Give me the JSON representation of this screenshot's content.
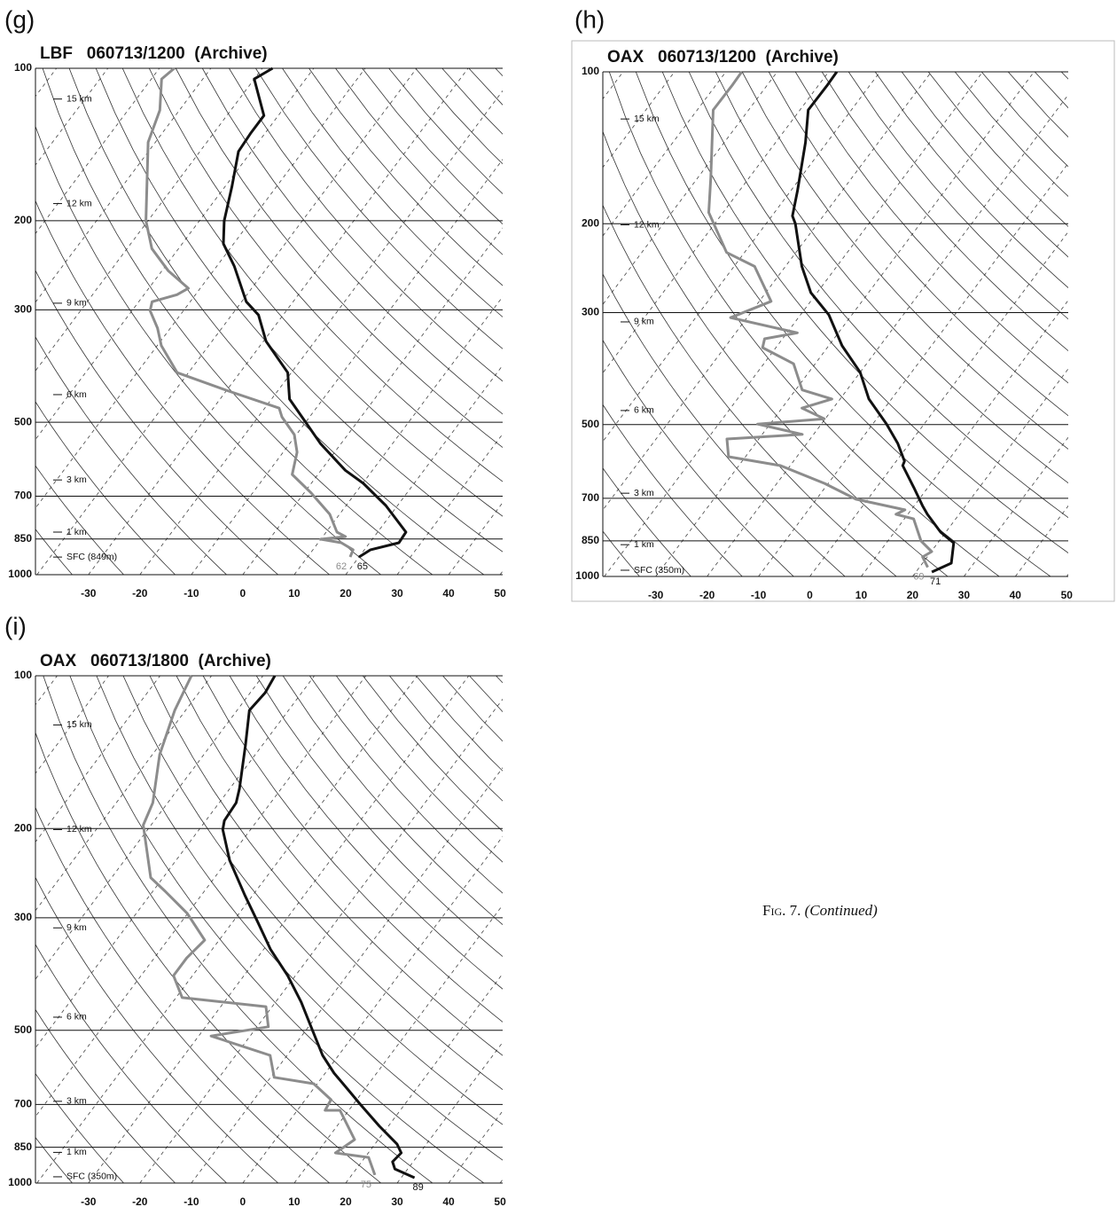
{
  "chart_data": [
    {
      "type": "skewt",
      "panel": "(g)",
      "title": "LBF   060713/1200  (Archive)",
      "xlim": [
        -40.3,
        50.5
      ],
      "ylim": [
        1000,
        100
      ],
      "ylog": true,
      "xticks": [
        -30,
        -20,
        -10,
        0,
        10,
        20,
        30,
        40,
        50
      ],
      "yticks": [
        100,
        200,
        300,
        500,
        700,
        850,
        1000
      ],
      "height_markers": [
        {
          "label": "15 km",
          "pressure": 115
        },
        {
          "label": "12 km",
          "pressure": 185
        },
        {
          "label": "9 km",
          "pressure": 291
        },
        {
          "label": "6 km",
          "pressure": 441
        },
        {
          "label": "3 km",
          "pressure": 650
        },
        {
          "label": "1 km",
          "pressure": 824
        },
        {
          "label": "SFC (849m)",
          "pressure": 923
        }
      ],
      "series": [
        {
          "color": "#111111",
          "pressure": [
            100,
            105,
            124,
            134,
            146,
            171,
            200,
            222,
            246,
            289,
            307,
            346,
            399,
            450,
            500,
            551,
            622,
            660,
            730,
            824,
            865,
            893,
            923
          ],
          "temperature": [
            -68,
            -70,
            -62.8,
            -62.8,
            -62.5,
            -58.7,
            -55.2,
            -52,
            -46.6,
            -39.1,
            -34.8,
            -29.5,
            -20.7,
            -16.5,
            -10,
            -4,
            4.7,
            10.1,
            17.7,
            25.5,
            25.7,
            21.2,
            20
          ],
          "surface_label": "65"
        },
        {
          "color": "#8c8c8c",
          "pressure": [
            100,
            105,
            121,
            140,
            200,
            227,
            251,
            272,
            280,
            289,
            301,
            326,
            353,
            399,
            432,
            469,
            488,
            529,
            573,
            634,
            687,
            760,
            824,
            841,
            851,
            865,
            893,
            923
          ],
          "temperature": [
            -87.1,
            -88,
            -83.8,
            -81.4,
            -70.4,
            -65.2,
            -58.8,
            -52.3,
            -53.6,
            -57.4,
            -56.5,
            -52.5,
            -49.2,
            -42.2,
            -30.2,
            -17.2,
            -15.4,
            -10.4,
            -7.3,
            -5,
            1.1,
            8.1,
            12.1,
            14.4,
            10,
            14.5,
            17.8,
            18.3
          ],
          "surface_label": "62"
        }
      ]
    },
    {
      "type": "skewt",
      "panel": "(h)",
      "title": "OAX   060713/1200  (Archive)",
      "xlim": [
        -40.3,
        50.3
      ],
      "ylim": [
        1000,
        100
      ],
      "ylog": true,
      "xticks": [
        -30,
        -20,
        -10,
        0,
        10,
        20,
        30,
        40,
        50
      ],
      "yticks": [
        100,
        200,
        300,
        500,
        700,
        850,
        1000
      ],
      "height_markers": [
        {
          "label": "15 km",
          "pressure": 124
        },
        {
          "label": "12 km",
          "pressure": 201
        },
        {
          "label": "9 km",
          "pressure": 313
        },
        {
          "label": "6 km",
          "pressure": 469
        },
        {
          "label": "3 km",
          "pressure": 684
        },
        {
          "label": "1 km",
          "pressure": 865
        },
        {
          "label": "SFC (350m)",
          "pressure": 972
        }
      ],
      "series": [
        {
          "color": "#111111",
          "pressure": [
            100,
            106,
            119,
            138,
            172,
            193,
            200,
            243,
            274,
            303,
            349,
            394,
            445,
            499,
            545,
            591,
            603,
            667,
            724,
            753,
            817,
            858,
            941,
            980
          ],
          "temperature": [
            -68.4,
            -68.3,
            -68.4,
            -64.2,
            -58.7,
            -56,
            -54.3,
            -46.8,
            -41.2,
            -34.5,
            -27.4,
            -20,
            -14.4,
            -7.3,
            -2.3,
            1.6,
            1.9,
            7.3,
            11.6,
            13.8,
            19,
            23.1,
            25.6,
            23.1
          ],
          "surface_label": "71"
        },
        {
          "color": "#8c8c8c",
          "pressure": [
            100,
            106,
            119,
            162,
            190,
            228,
            243,
            285,
            307,
            329,
            338,
            352,
            379,
            427,
            445,
            464,
            487,
            499,
            523,
            534,
            579,
            603,
            654,
            703,
            738,
            753,
            769,
            851,
            893,
            915,
            959
          ],
          "temperature": [
            -86.9,
            -86.8,
            -86.9,
            -77.5,
            -72.8,
            -63.5,
            -56,
            -47.7,
            -53.2,
            -38,
            -43.5,
            -42.6,
            -34.2,
            -28.7,
            -21.6,
            -26.1,
            -20.2,
            -32.4,
            -22.2,
            -36.2,
            -33.3,
            -21.9,
            -10.7,
            -2.3,
            8.8,
            7.7,
            11.8,
            16.5,
            20.1,
            19.1,
            21.6
          ],
          "surface_label": "69"
        }
      ]
    },
    {
      "type": "skewt",
      "panel": "(i)",
      "title": "OAX   060713/1800  (Archive)",
      "xlim": [
        -40.3,
        50.5
      ],
      "ylim": [
        1000,
        100
      ],
      "ylog": true,
      "xticks": [
        -30,
        -20,
        -10,
        0,
        10,
        20,
        30,
        40,
        50
      ],
      "yticks": [
        100,
        200,
        300,
        500,
        700,
        850,
        1000
      ],
      "height_markers": [
        {
          "label": "15 km",
          "pressure": 125
        },
        {
          "label": "12 km",
          "pressure": 201
        },
        {
          "label": "9 km",
          "pressure": 314
        },
        {
          "label": "6 km",
          "pressure": 471
        },
        {
          "label": "3 km",
          "pressure": 690
        },
        {
          "label": "1 km",
          "pressure": 870
        },
        {
          "label": "SFC (350m)",
          "pressure": 972
        }
      ],
      "series": [
        {
          "color": "#111111",
          "pressure": [
            100,
            108,
            117,
            137,
            167,
            178,
            193,
            201,
            231,
            271,
            306,
            346,
            390,
            440,
            496,
            560,
            607,
            658,
            699,
            773,
            838,
            872,
            908,
            938,
            976
          ],
          "temperature": [
            -67.7,
            -67.1,
            -67.6,
            -63.3,
            -58.1,
            -56.7,
            -56.4,
            -55.4,
            -49.6,
            -41.5,
            -35.1,
            -28.7,
            -21.5,
            -15,
            -9.1,
            -3.1,
            1.7,
            7.2,
            11.3,
            18.3,
            24.3,
            26.4,
            26,
            27.5,
            32.6
          ],
          "surface_label": "89"
        },
        {
          "color": "#8c8c8c",
          "pressure": [
            100,
            117,
            143,
            178,
            197,
            250,
            266,
            294,
            332,
            360,
            390,
            431,
            449,
            492,
            513,
            560,
            619,
            637,
            685,
            719,
            719,
            821,
            872,
            890,
            964
          ],
          "temperature": [
            -83.9,
            -82.1,
            -78.6,
            -72.9,
            -71.5,
            -62.4,
            -57.6,
            -50.1,
            -42.8,
            -43.7,
            -43.7,
            -38.8,
            -21.2,
            -17.8,
            -27.6,
            -13.3,
            -9.3,
            -0.7,
            5,
            5.4,
            8.3,
            15.4,
            13.6,
            20.7,
            24.5
          ],
          "surface_label": "75"
        }
      ]
    }
  ],
  "caption": {
    "label": "Fig. 7.",
    "text": "(Continued)"
  }
}
